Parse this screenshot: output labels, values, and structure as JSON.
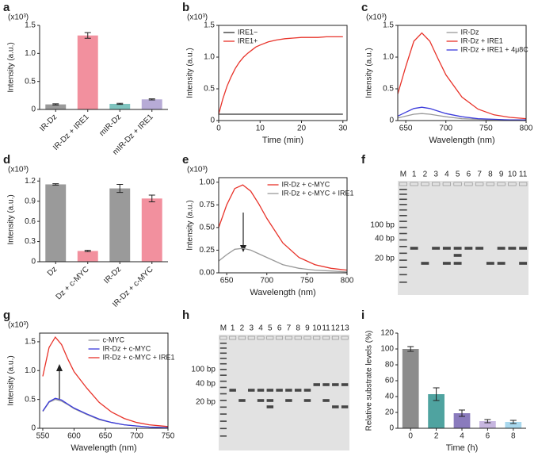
{
  "chart_data": [
    {
      "panel_label": "a",
      "type": "bar",
      "y_multiplier": "(x10³)",
      "ylabel": "Intensity (a.u.)",
      "categories": [
        "IR-Dz",
        "IR-Dz + IRE1",
        "mIR-Dz",
        "mIR-Dz + IRE1"
      ],
      "values": [
        0.09,
        1.32,
        0.1,
        0.18
      ],
      "errors": [
        0.01,
        0.05,
        0.01,
        0.01
      ],
      "colors": [
        "#9a9a9a",
        "#f2909e",
        "#7fc4bf",
        "#b7abd6"
      ],
      "ylim": [
        0,
        1.5
      ],
      "yticks": [
        0,
        0.5,
        {
          "value": 1,
          "label": "1.0"
        },
        1.5
      ],
      "rotate_labels": true
    },
    {
      "panel_label": "b",
      "type": "line",
      "y_multiplier": "(x10³)",
      "ylabel": "Intensity (a.u.)",
      "xlabel": "Time (min)",
      "x": [
        0,
        1,
        2,
        3,
        4,
        5,
        6,
        7,
        8,
        9,
        10,
        12,
        14,
        16,
        18,
        20,
        22,
        24,
        26,
        28,
        30
      ],
      "series": [
        {
          "name": "IRE1−",
          "color": "#333333",
          "values": [
            0.1,
            0.1,
            0.1,
            0.1,
            0.1,
            0.1,
            0.1,
            0.1,
            0.1,
            0.1,
            0.1,
            0.1,
            0.1,
            0.1,
            0.1,
            0.1,
            0.1,
            0.1,
            0.1,
            0.1,
            0.1
          ]
        },
        {
          "name": "IRE1+",
          "color": "#e8332a",
          "values": [
            0.1,
            0.34,
            0.54,
            0.69,
            0.82,
            0.92,
            1.0,
            1.06,
            1.11,
            1.16,
            1.19,
            1.24,
            1.27,
            1.29,
            1.3,
            1.31,
            1.31,
            1.31,
            1.32,
            1.32,
            1.32
          ]
        }
      ],
      "xlim": [
        0,
        31
      ],
      "xticks": [
        0,
        10,
        20,
        30
      ],
      "ylim": [
        0,
        1.5
      ],
      "yticks": [
        0,
        0.5,
        {
          "value": 1,
          "label": "1.0"
        },
        1.5
      ],
      "legend": "upper left",
      "frame": true
    },
    {
      "panel_label": "c",
      "type": "line",
      "y_multiplier": "(x10³)",
      "ylabel": "Intensity (a.u.)",
      "xlabel": "Wavelength (nm)",
      "x": [
        640,
        650,
        660,
        670,
        680,
        690,
        700,
        720,
        740,
        760,
        780,
        800
      ],
      "series": [
        {
          "name": "IR-Dz",
          "color": "#999999",
          "values": [
            0.04,
            0.07,
            0.1,
            0.11,
            0.1,
            0.08,
            0.06,
            0.03,
            0.02,
            0.01,
            0.01,
            0
          ]
        },
        {
          "name": "IR-Dz + IRE1",
          "color": "#e8332a",
          "values": [
            0.42,
            0.85,
            1.25,
            1.38,
            1.25,
            0.98,
            0.72,
            0.37,
            0.18,
            0.09,
            0.05,
            0.03
          ]
        },
        {
          "name": "IR-Dz + IRE1 + 4μ8C",
          "color": "#3b3bdb",
          "values": [
            0.07,
            0.13,
            0.19,
            0.21,
            0.19,
            0.15,
            0.11,
            0.06,
            0.03,
            0.02,
            0.01,
            0.01
          ]
        }
      ],
      "xlim": [
        640,
        800
      ],
      "xticks": [
        650,
        700,
        750,
        800
      ],
      "ylim": [
        0,
        1.5
      ],
      "yticks": [
        0,
        0.5,
        {
          "value": 1,
          "label": "1.0"
        },
        1.5
      ],
      "legend": "upper right",
      "frame": true
    },
    {
      "panel_label": "d",
      "type": "bar",
      "y_multiplier": "(x10³)",
      "ylabel": "Intensity (a.u.)",
      "categories": [
        "Dz",
        "Dz + c-MYC",
        "IR-Dz",
        "IR-Dz + c-MYC"
      ],
      "values": [
        1.15,
        0.16,
        1.09,
        0.94
      ],
      "errors": [
        0.01,
        0.01,
        0.06,
        0.05
      ],
      "colors": [
        "#9a9a9a",
        "#f2909e",
        "#9a9a9a",
        "#f2909e"
      ],
      "ylim": [
        0,
        1.25
      ],
      "yticks": [
        0,
        0.3,
        0.6,
        0.9,
        1.2
      ],
      "rotate_labels": true
    },
    {
      "panel_label": "e",
      "type": "line",
      "y_multiplier": "(x10³)",
      "ylabel": "Intensity (a.u.)",
      "xlabel": "Wavelength (nm)",
      "x": [
        640,
        650,
        660,
        670,
        680,
        690,
        700,
        720,
        740,
        760,
        780,
        800
      ],
      "series": [
        {
          "name": "IR-Dz + c-MYC",
          "color": "#e8332a",
          "values": [
            0.5,
            0.75,
            0.93,
            0.97,
            0.9,
            0.76,
            0.6,
            0.33,
            0.17,
            0.09,
            0.05,
            0.03
          ]
        },
        {
          "name": "IR-Dz + c-MYC + IRE1",
          "color": "#999999",
          "values": [
            0.13,
            0.2,
            0.26,
            0.27,
            0.25,
            0.21,
            0.17,
            0.09,
            0.05,
            0.03,
            0.02,
            0.01
          ]
        }
      ],
      "xlim": [
        640,
        800
      ],
      "xticks": [
        650,
        700,
        750,
        800
      ],
      "ylim": [
        0,
        1.05
      ],
      "yticks": [
        {
          "value": 0,
          "label": "0.00"
        },
        0.25,
        {
          "value": 0.5,
          "label": "0.50"
        },
        0.75,
        {
          "value": 1,
          "label": "1.00"
        }
      ],
      "legend": "upper right",
      "frame": true
    },
    {
      "panel_label": "g",
      "type": "line",
      "y_multiplier": "(x10³)",
      "ylabel": "Intensity (a.u.)",
      "xlabel": "Wavelength (nm)",
      "x": [
        550,
        560,
        570,
        580,
        590,
        600,
        620,
        640,
        660,
        680,
        700,
        720,
        750
      ],
      "series": [
        {
          "name": "c-MYC",
          "color": "#999999",
          "values": [
            0.29,
            0.45,
            0.5,
            0.47,
            0.41,
            0.34,
            0.24,
            0.15,
            0.1,
            0.06,
            0.04,
            0.02,
            0.01
          ]
        },
        {
          "name": "IR-Dz + c-MYC",
          "color": "#3b3bdb",
          "values": [
            0.3,
            0.46,
            0.52,
            0.49,
            0.42,
            0.35,
            0.25,
            0.16,
            0.1,
            0.06,
            0.04,
            0.02,
            0.01
          ]
        },
        {
          "name": "IR-Dz + c-MYC + IRE1",
          "color": "#e8332a",
          "values": [
            0.9,
            1.4,
            1.58,
            1.45,
            1.2,
            0.98,
            0.7,
            0.45,
            0.28,
            0.17,
            0.1,
            0.06,
            0.03
          ]
        }
      ],
      "xlim": [
        545,
        750
      ],
      "xticks": [
        550,
        600,
        650,
        700,
        750
      ],
      "ylim": [
        0,
        1.65
      ],
      "yticks": [
        0,
        0.5,
        {
          "value": 1,
          "label": "1.0"
        },
        1.5
      ],
      "legend": "upper right",
      "frame": true
    },
    {
      "panel_label": "i",
      "type": "bar",
      "ylabel": "Relative substrate levels (%)",
      "xlabel": "Time (h)",
      "categories": [
        "0",
        "2",
        "4",
        "6",
        "8"
      ],
      "values": [
        100,
        43,
        19,
        9,
        8
      ],
      "errors": [
        3,
        8,
        4,
        2,
        2
      ],
      "colors": [
        "#8c8c8c",
        "#4fa3a0",
        "#8a7bbd",
        "#c7b6e0",
        "#a9d8ee"
      ],
      "ylim": [
        0,
        120
      ],
      "yticks": [
        0,
        20,
        40,
        60,
        80,
        100,
        120
      ],
      "rotate_labels": false
    }
  ],
  "gels": [
    {
      "panel_label": "f",
      "lanes": [
        "M",
        "1",
        "2",
        "3",
        "4",
        "5",
        "6",
        "7",
        "8",
        "9",
        "10",
        "11"
      ],
      "markers": [
        "100 bp",
        "40 bp",
        "20 bp"
      ]
    },
    {
      "panel_label": "h",
      "lanes": [
        "M",
        "1",
        "2",
        "3",
        "4",
        "5",
        "6",
        "7",
        "8",
        "9",
        "10",
        "11",
        "12",
        "13"
      ],
      "markers": [
        "100 bp",
        "40 bp",
        "20 bp"
      ]
    }
  ]
}
